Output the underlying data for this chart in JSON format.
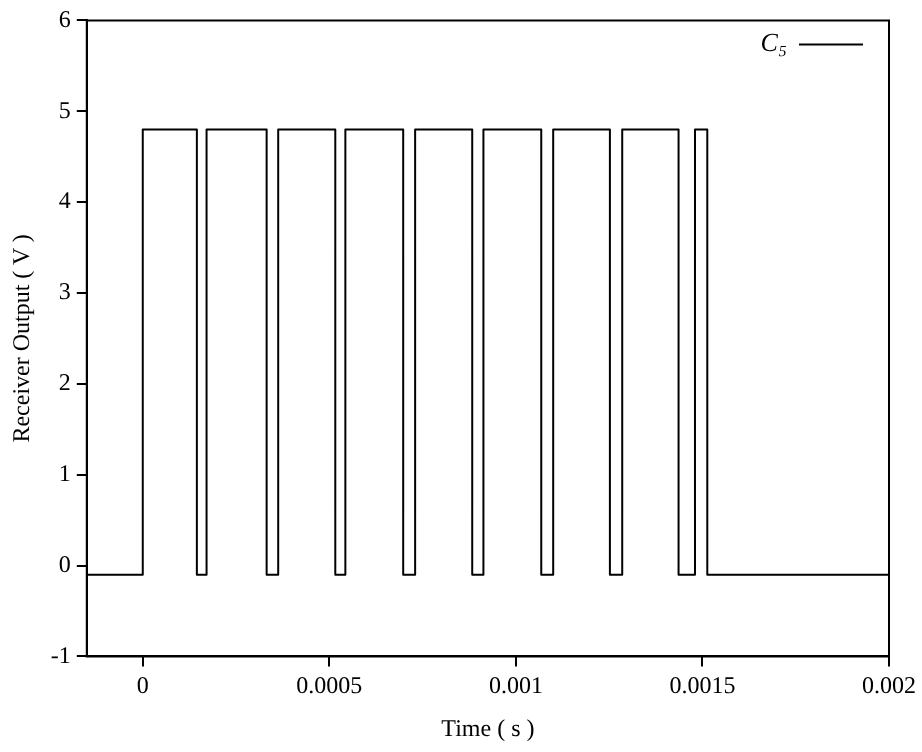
{
  "chart_data": {
    "type": "line",
    "xlabel": "Time ( s )",
    "ylabel": "Receiver Output ( V )",
    "xlim": [
      -0.00015,
      0.002
    ],
    "xticks": [
      0,
      0.0005,
      0.001,
      0.0015,
      0.002
    ],
    "ylim": [
      -1,
      6
    ],
    "yticks": [
      -1,
      0,
      1,
      2,
      3,
      4,
      5,
      6
    ],
    "grid": false,
    "legend": "top right",
    "marker": "none",
    "line_style": "solid",
    "series": [
      {
        "name": "C₅",
        "color": "#000000",
        "x": [
          -0.00015,
          0,
          0,
          0.000145,
          0.000145,
          0.000171,
          0.000171,
          0.000332,
          0.000332,
          0.000363,
          0.000363,
          0.000516,
          0.000516,
          0.000543,
          0.000543,
          0.000698,
          0.000698,
          0.00073,
          0.00073,
          0.000883,
          0.000883,
          0.000913,
          0.000913,
          0.001068,
          0.001068,
          0.0011,
          0.0011,
          0.001252,
          0.001252,
          0.001285,
          0.001285,
          0.001436,
          0.001436,
          0.00148,
          0.00148,
          0.001513,
          0.001513,
          0.002
        ],
        "values": [
          -0.1,
          -0.1,
          4.8,
          4.8,
          -0.1,
          -0.1,
          4.8,
          4.8,
          -0.1,
          -0.1,
          4.8,
          4.8,
          -0.1,
          -0.1,
          4.8,
          4.8,
          -0.1,
          -0.1,
          4.8,
          4.8,
          -0.1,
          -0.1,
          4.8,
          4.8,
          -0.1,
          -0.1,
          4.8,
          4.8,
          -0.1,
          -0.1,
          4.8,
          4.8,
          -0.1,
          -0.1,
          4.8,
          4.8,
          -0.1,
          -0.1
        ]
      }
    ]
  }
}
